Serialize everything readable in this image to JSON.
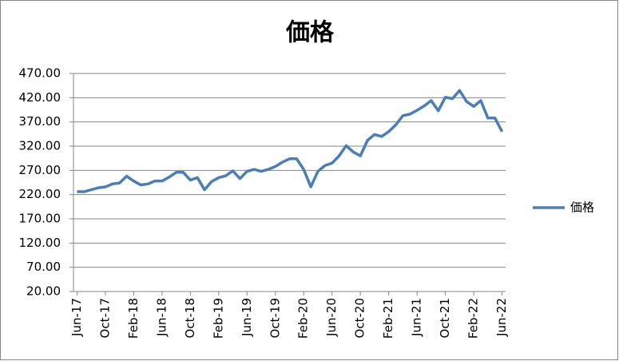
{
  "chart_data": {
    "type": "line",
    "title": "価格",
    "categories": [
      "Jun-17",
      null,
      null,
      null,
      "Oct-17",
      null,
      null,
      null,
      "Feb-18",
      null,
      null,
      null,
      "Jun-18",
      null,
      null,
      null,
      "Oct-18",
      null,
      null,
      null,
      "Feb-19",
      null,
      null,
      null,
      "Jun-19",
      null,
      null,
      null,
      "Oct-19",
      null,
      null,
      null,
      "Feb-20",
      null,
      null,
      null,
      "Jun-20",
      null,
      null,
      null,
      "Oct-20",
      null,
      null,
      null,
      "Feb-21",
      null,
      null,
      null,
      "Jun-21",
      null,
      null,
      null,
      "Oct-21",
      null,
      null,
      null,
      "Feb-22",
      null,
      null,
      null,
      "Jun-22"
    ],
    "series": [
      {
        "name": "価格",
        "color": "#4a7ebb",
        "values": [
          226,
          226,
          230,
          234,
          236,
          242,
          244,
          258,
          248,
          240,
          242,
          248,
          248,
          256,
          266,
          266,
          250,
          255,
          230,
          247,
          255,
          259,
          269,
          253,
          268,
          272,
          268,
          272,
          278,
          287,
          294,
          294,
          272,
          236,
          268,
          280,
          285,
          300,
          321,
          308,
          300,
          332,
          344,
          340,
          350,
          364,
          383,
          386,
          394,
          403,
          414,
          393,
          421,
          418,
          435,
          412,
          402,
          414,
          378,
          378,
          350
        ]
      }
    ],
    "ylim": [
      20,
      470
    ],
    "yticks": [
      {
        "value": 20,
        "label": "20.00"
      },
      {
        "value": 70,
        "label": "70.00"
      },
      {
        "value": 120,
        "label": "120.00"
      },
      {
        "value": 170,
        "label": "170.00"
      },
      {
        "value": 220,
        "label": "220.00"
      },
      {
        "value": 270,
        "label": "270.00"
      },
      {
        "value": 320,
        "label": "320.00"
      },
      {
        "value": 370,
        "label": "370.00"
      },
      {
        "value": 420,
        "label": "420.00"
      },
      {
        "value": 470,
        "label": "470.00"
      }
    ],
    "grid": true,
    "legend": "right"
  }
}
